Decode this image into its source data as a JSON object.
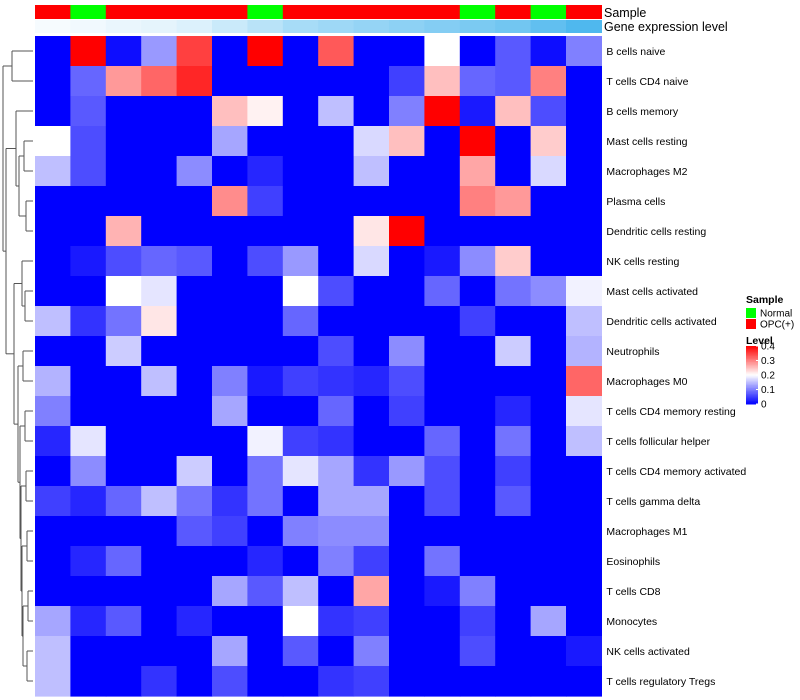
{
  "chart_data": {
    "type": "heatmap",
    "title": "",
    "annotations": {
      "sample_label": "Sample",
      "expression_label": "Gene expression level"
    },
    "sample_groups": [
      "OPC(+)",
      "Normal",
      "OPC(+)",
      "OPC(+)",
      "OPC(+)",
      "OPC(+)",
      "Normal",
      "OPC(+)",
      "OPC(+)",
      "OPC(+)",
      "OPC(+)",
      "OPC(+)",
      "Normal",
      "OPC(+)",
      "Normal",
      "OPC(+)"
    ],
    "expression_level": [
      0.05,
      0.08,
      0.12,
      0.15,
      0.2,
      0.3,
      0.4,
      0.5,
      0.55,
      0.6,
      0.65,
      0.7,
      0.75,
      0.8,
      0.9,
      1.0
    ],
    "rows": [
      "B cells naive",
      "T cells CD4 naive",
      "B cells memory",
      "Mast cells resting",
      "Macrophages M2",
      "Plasma cells",
      "Dendritic cells resting",
      "NK cells resting",
      "Mast cells activated",
      "Dendritic cells activated",
      "Neutrophils",
      "Macrophages M0",
      "T cells CD4 memory resting",
      "T cells follicular helper",
      "T cells CD4 memory activated",
      "T cells gamma delta",
      "Macrophages M1",
      "Eosinophils",
      "T cells CD8",
      "Monocytes",
      "NK cells activated",
      "T cells regulatory  Tregs"
    ],
    "values": [
      [
        0.0,
        0.4,
        0.01,
        0.12,
        0.35,
        0.0,
        0.4,
        0.0,
        0.33,
        0.0,
        0.0,
        0.2,
        0.0,
        0.07,
        0.01,
        0.1
      ],
      [
        0.0,
        0.08,
        0.28,
        0.32,
        0.37,
        0.0,
        0.0,
        0.0,
        0.0,
        0.0,
        0.05,
        0.25,
        0.08,
        0.07,
        0.3,
        0.0
      ],
      [
        0.0,
        0.07,
        0.0,
        0.0,
        0.0,
        0.25,
        0.21,
        0.0,
        0.15,
        0.0,
        0.1,
        0.4,
        0.02,
        0.25,
        0.06,
        0.0
      ],
      [
        0.2,
        0.06,
        0.0,
        0.0,
        0.0,
        0.13,
        0.0,
        0.0,
        0.0,
        0.17,
        0.25,
        0.0,
        0.4,
        0.0,
        0.24,
        0.0
      ],
      [
        0.15,
        0.06,
        0.0,
        0.0,
        0.11,
        0.0,
        0.03,
        0.0,
        0.0,
        0.15,
        0.0,
        0.0,
        0.27,
        0.0,
        0.17,
        0.0
      ],
      [
        0.0,
        0.0,
        0.0,
        0.0,
        0.0,
        0.29,
        0.05,
        0.0,
        0.0,
        0.0,
        0.0,
        0.0,
        0.3,
        0.28,
        0.0,
        0.0
      ],
      [
        0.0,
        0.0,
        0.26,
        0.0,
        0.0,
        0.0,
        0.0,
        0.0,
        0.0,
        0.22,
        0.4,
        0.0,
        0.0,
        0.0,
        0.0,
        0.0
      ],
      [
        0.0,
        0.02,
        0.06,
        0.08,
        0.07,
        0.0,
        0.06,
        0.12,
        0.0,
        0.17,
        0.0,
        0.02,
        0.11,
        0.24,
        0.0,
        0.0
      ],
      [
        0.0,
        0.0,
        0.2,
        0.18,
        0.0,
        0.0,
        0.0,
        0.2,
        0.06,
        0.0,
        0.0,
        0.08,
        0.0,
        0.09,
        0.11,
        0.19
      ],
      [
        0.15,
        0.04,
        0.09,
        0.22,
        0.0,
        0.0,
        0.0,
        0.08,
        0.0,
        0.0,
        0.0,
        0.0,
        0.05,
        0.0,
        0.0,
        0.15
      ],
      [
        0.0,
        0.0,
        0.16,
        0.0,
        0.0,
        0.0,
        0.0,
        0.0,
        0.06,
        0.0,
        0.11,
        0.0,
        0.0,
        0.16,
        0.0,
        0.14
      ],
      [
        0.14,
        0.0,
        0.0,
        0.15,
        0.0,
        0.1,
        0.02,
        0.05,
        0.04,
        0.03,
        0.06,
        0.0,
        0.0,
        0.0,
        0.0,
        0.32
      ],
      [
        0.1,
        0.0,
        0.0,
        0.0,
        0.0,
        0.13,
        0.0,
        0.0,
        0.08,
        0.0,
        0.05,
        0.0,
        0.0,
        0.03,
        0.0,
        0.18
      ],
      [
        0.03,
        0.18,
        0.0,
        0.0,
        0.0,
        0.0,
        0.19,
        0.05,
        0.04,
        0.0,
        0.0,
        0.08,
        0.0,
        0.09,
        0.0,
        0.15
      ],
      [
        0.0,
        0.11,
        0.0,
        0.0,
        0.16,
        0.0,
        0.09,
        0.18,
        0.13,
        0.04,
        0.12,
        0.06,
        0.0,
        0.05,
        0.0,
        0.0
      ],
      [
        0.05,
        0.03,
        0.08,
        0.15,
        0.09,
        0.04,
        0.09,
        0.0,
        0.13,
        0.13,
        0.0,
        0.06,
        0.0,
        0.07,
        0.0,
        0.0
      ],
      [
        0.0,
        0.0,
        0.0,
        0.0,
        0.07,
        0.05,
        0.0,
        0.1,
        0.11,
        0.11,
        0.0,
        0.0,
        0.0,
        0.0,
        0.0,
        0.0
      ],
      [
        0.0,
        0.03,
        0.08,
        0.0,
        0.0,
        0.0,
        0.03,
        0.0,
        0.1,
        0.05,
        0.0,
        0.09,
        0.0,
        0.0,
        0.0,
        0.0
      ],
      [
        0.0,
        0.0,
        0.0,
        0.0,
        0.0,
        0.13,
        0.07,
        0.15,
        0.0,
        0.27,
        0.0,
        0.02,
        0.1,
        0.0,
        0.0,
        0.0
      ],
      [
        0.13,
        0.03,
        0.07,
        0.0,
        0.03,
        0.0,
        0.0,
        0.2,
        0.04,
        0.05,
        0.0,
        0.0,
        0.05,
        0.0,
        0.13,
        0.0
      ],
      [
        0.15,
        0.0,
        0.0,
        0.0,
        0.0,
        0.13,
        0.0,
        0.07,
        0.0,
        0.1,
        0.0,
        0.0,
        0.06,
        0.0,
        0.0,
        0.02
      ],
      [
        0.15,
        0.0,
        0.0,
        0.04,
        0.0,
        0.06,
        0.0,
        0.0,
        0.04,
        0.05,
        0.0,
        0.0,
        0.0,
        0.0,
        0.0,
        0.0
      ]
    ],
    "color_scale": {
      "min": 0,
      "max": 0.4,
      "low": "#0000ff",
      "mid": "#ffffff",
      "high": "#ff0000"
    },
    "group_colors": {
      "Normal": "#00ff00",
      "OPC(+)": "#ff0000"
    },
    "expression_colors": {
      "low": "#ffffff",
      "high": "#4fb8ee"
    },
    "legend": {
      "sample_title": "Sample",
      "sample_entries": [
        "Normal",
        "OPC(+)"
      ],
      "level_title": "Level",
      "ticks": [
        {
          "label": "0.4",
          "value": 0.4
        },
        {
          "label": "0.3",
          "value": 0.3
        },
        {
          "label": "0.2",
          "value": 0.2
        },
        {
          "label": "0.1",
          "value": 0.1
        },
        {
          "label": "0",
          "value": 0.0
        }
      ]
    }
  }
}
